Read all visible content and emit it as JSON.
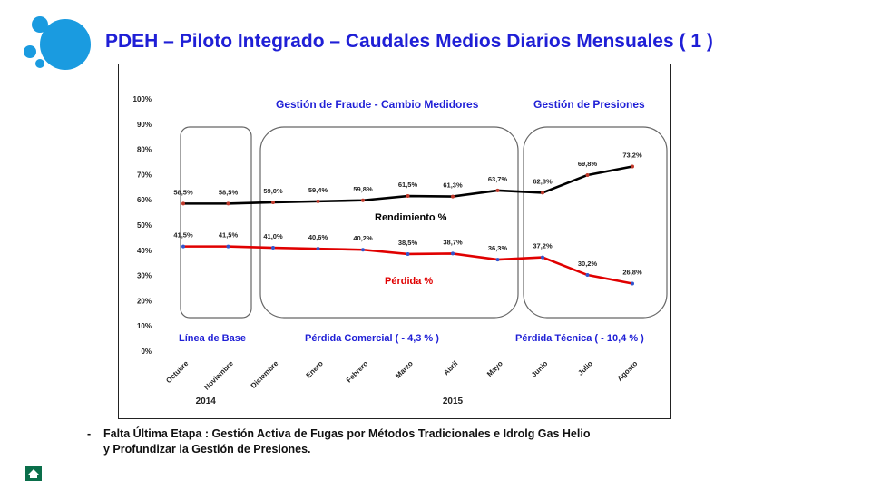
{
  "header": {
    "title": "PDEH – Piloto Integrado – Caudales Medios Diarios Mensuales ( 1 )",
    "logo_icon": "circles-logo-icon"
  },
  "chart_data": {
    "type": "line",
    "categories": [
      "Octubre",
      "Noviembre",
      "Diciembre",
      "Enero",
      "Febrero",
      "Marzo",
      "Abril",
      "Mayo",
      "Junio",
      "Julio",
      "Agosto"
    ],
    "year_groups": [
      {
        "label": "2014",
        "from": 0,
        "to": 1
      },
      {
        "label": "2015",
        "from": 2,
        "to": 10
      }
    ],
    "series": [
      {
        "name": "Rendimiento %",
        "color": "#000000",
        "marker_color": "#c0392b",
        "values": [
          58.5,
          58.5,
          59.0,
          59.4,
          59.8,
          61.5,
          61.3,
          63.7,
          62.8,
          69.8,
          73.2
        ],
        "labels": [
          "58,5%",
          "58,5%",
          "59,0%",
          "59,4%",
          "59,8%",
          "61,5%",
          "61,3%",
          "63,7%",
          "62,8%",
          "69,8%",
          "73,2%"
        ]
      },
      {
        "name": "Pérdida  %",
        "color": "#e00000",
        "marker_color": "#3355cc",
        "values": [
          41.5,
          41.5,
          41.0,
          40.6,
          40.2,
          38.5,
          38.7,
          36.3,
          37.2,
          30.2,
          26.8
        ],
        "labels": [
          "41,5%",
          "41,5%",
          "41,0%",
          "40,6%",
          "40,2%",
          "38,5%",
          "38,7%",
          "36,3%",
          "37,2%",
          "30,2%",
          "26,8%"
        ]
      }
    ],
    "yticks": [
      "0%",
      "10%",
      "20%",
      "30%",
      "40%",
      "50%",
      "60%",
      "70%",
      "80%",
      "90%",
      "100%"
    ],
    "ylim": [
      0,
      100
    ],
    "annotations": {
      "group_headers": [
        "Gestión de  Fraude - Cambio Medidores",
        "Gestión de Presiones"
      ],
      "group_footers": [
        "Línea de Base",
        "Pérdida Comercial  (  - 4,3 %  )",
        "Pérdida Técnica ( - 10,4 % )"
      ]
    },
    "annotation_color": "#1f1fd6",
    "grid": false
  },
  "footer": {
    "note_dash": "-",
    "note_line1": "Falta Última Etapa : Gestión Activa de Fugas  por  Métodos Tradicionales e Idrolg Gas Helio",
    "note_line2": "y Profundizar la Gestión de Presiones.",
    "home_icon": "home-icon"
  }
}
